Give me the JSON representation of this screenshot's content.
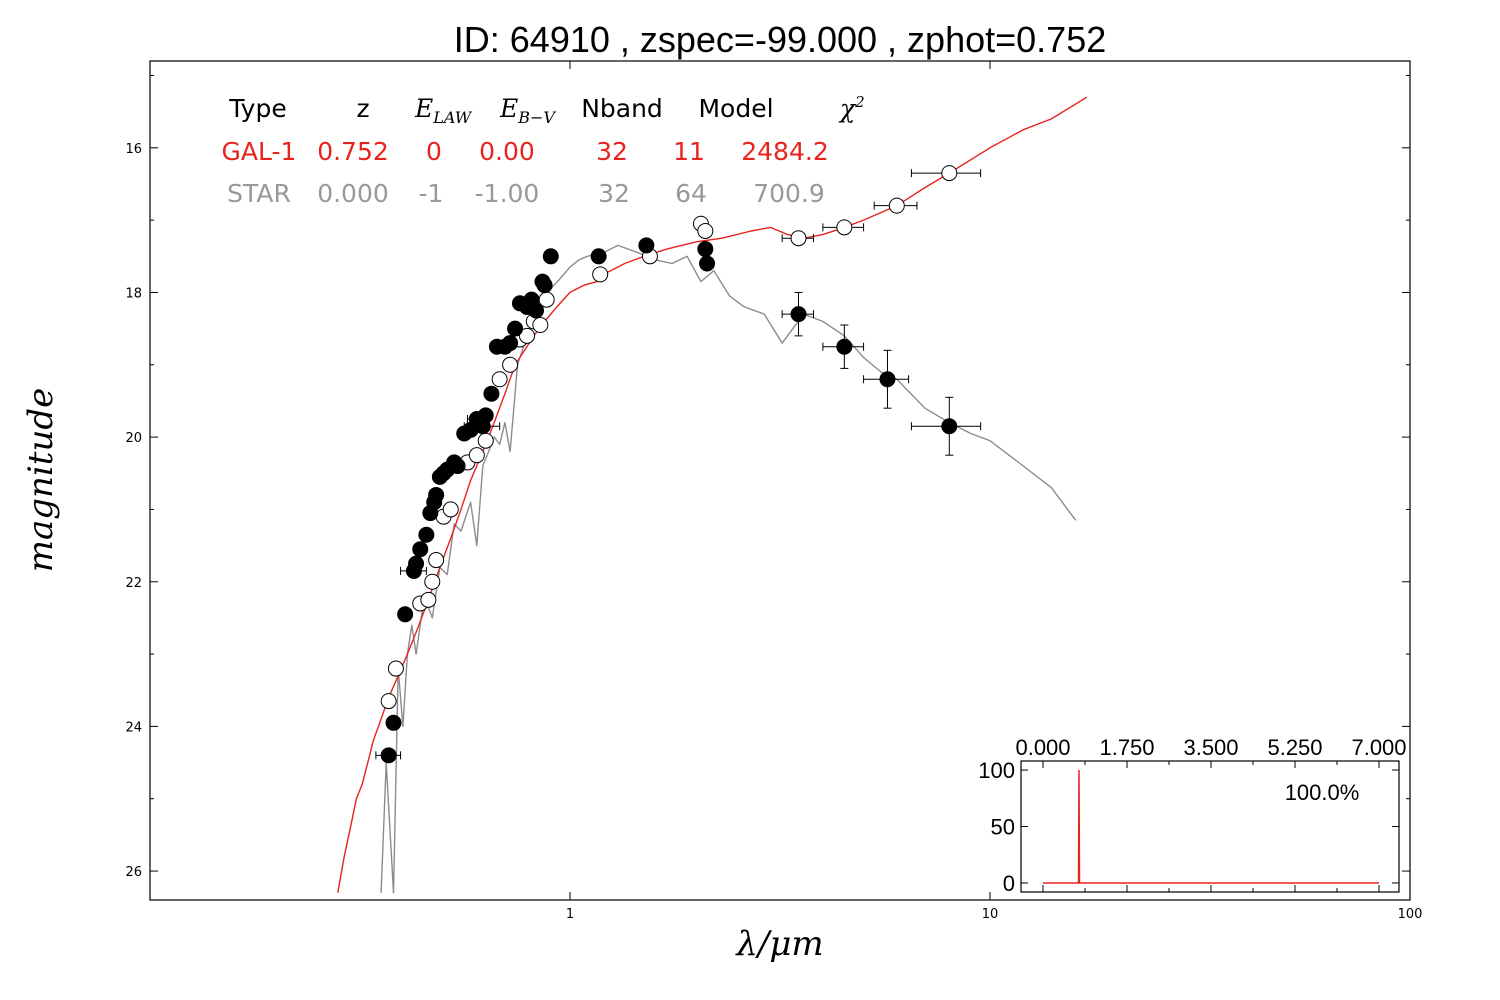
{
  "chart_data": {
    "type": "scatter",
    "title": "ID:  64910 , zspec=-99.000 , zphot=0.752",
    "xlabel": "λ/μm",
    "ylabel": "magnitude",
    "xscale": "log",
    "xlim": [
      0.1,
      100
    ],
    "ylim": [
      26.4,
      14.8
    ],
    "y_inverted": true,
    "xticks": [
      "1",
      "10",
      "100"
    ],
    "yticks": [
      "16",
      "18",
      "20",
      "22",
      "24",
      "26"
    ],
    "grid": false,
    "table": {
      "headers": [
        "Type",
        "z",
        "E_LAW",
        "E_B−V",
        "Nband",
        "Model",
        "χ²"
      ],
      "rows": [
        {
          "type": "GAL-1",
          "z": "0.752",
          "elaw": "0",
          "ebv": "0.00",
          "nband": "32",
          "model": "11",
          "chi2": "2484.2",
          "color": "#e8231d"
        },
        {
          "type": "STAR",
          "z": "0.000",
          "elaw": "-1",
          "ebv": "-1.00",
          "nband": "32",
          "model": "64",
          "chi2": "700.9",
          "color": "#999999"
        }
      ]
    },
    "series": [
      {
        "role": "galaxy model",
        "color": "#e8231d",
        "x": [
          0.28,
          0.29,
          0.3,
          0.31,
          0.32,
          0.33,
          0.34,
          0.35,
          0.37,
          0.39,
          0.41,
          0.43,
          0.45,
          0.47,
          0.49,
          0.52,
          0.55,
          0.58,
          0.62,
          0.66,
          0.7,
          0.74,
          0.78,
          0.82,
          0.87,
          0.93,
          1.0,
          1.08,
          1.16,
          1.2,
          1.25,
          1.35,
          1.5,
          1.7,
          2.0,
          2.3,
          2.7,
          3.0,
          3.3,
          3.6,
          4.0,
          4.5,
          5.0,
          6.0,
          7.0,
          8.0,
          10,
          12,
          14,
          17
        ],
        "y": [
          26.3,
          25.8,
          25.4,
          25.0,
          24.8,
          24.5,
          24.2,
          24.0,
          23.6,
          23.3,
          23.0,
          22.7,
          22.4,
          22.1,
          21.8,
          21.4,
          21.0,
          20.6,
          20.2,
          19.8,
          19.4,
          19.0,
          18.8,
          18.6,
          18.4,
          18.2,
          18.0,
          17.9,
          17.85,
          17.75,
          17.7,
          17.6,
          17.5,
          17.4,
          17.3,
          17.25,
          17.15,
          17.1,
          17.2,
          17.25,
          17.2,
          17.1,
          17.0,
          16.8,
          16.55,
          16.35,
          16.0,
          15.75,
          15.6,
          15.3
        ]
      },
      {
        "role": "star model",
        "color": "#8c8c8c",
        "x": [
          0.355,
          0.365,
          0.38,
          0.39,
          0.4,
          0.41,
          0.42,
          0.43,
          0.45,
          0.47,
          0.49,
          0.51,
          0.53,
          0.55,
          0.58,
          0.6,
          0.62,
          0.64,
          0.66,
          0.68,
          0.7,
          0.72,
          0.75,
          0.78,
          0.82,
          0.86,
          0.9,
          0.95,
          1.0,
          1.05,
          1.1,
          1.2,
          1.3,
          1.45,
          1.6,
          1.75,
          1.9,
          2.05,
          2.2,
          2.4,
          2.6,
          2.9,
          3.2,
          3.6,
          4.0,
          4.5,
          5.0,
          5.5,
          6.0,
          7.0,
          8.0,
          9.0,
          10,
          12,
          14,
          16
        ],
        "y": [
          26.3,
          24.5,
          26.3,
          23.2,
          24.0,
          23.0,
          22.6,
          23.0,
          22.2,
          22.5,
          21.8,
          21.9,
          21.2,
          21.3,
          20.9,
          21.5,
          20.4,
          20.2,
          20.0,
          20.1,
          19.8,
          20.2,
          19.0,
          18.7,
          18.4,
          18.1,
          17.95,
          17.8,
          17.65,
          17.55,
          17.5,
          17.45,
          17.35,
          17.45,
          17.55,
          17.6,
          17.5,
          17.85,
          17.7,
          18.05,
          18.2,
          18.3,
          18.7,
          18.3,
          18.4,
          18.6,
          18.9,
          19.1,
          19.2,
          19.6,
          19.8,
          19.95,
          20.05,
          20.4,
          20.7,
          21.15
        ]
      },
      {
        "role": "observed photometry (filled)",
        "color": "#000000",
        "x": [
          0.37,
          0.38,
          0.405,
          0.425,
          0.43,
          0.44,
          0.455,
          0.465,
          0.475,
          0.48,
          0.49,
          0.5,
          0.51,
          0.53,
          0.54,
          0.56,
          0.58,
          0.6,
          0.62,
          0.63,
          0.65,
          0.67,
          0.7,
          0.72,
          0.74,
          0.76,
          0.79,
          0.81,
          0.83,
          0.86,
          0.87,
          0.9,
          1.17,
          1.52,
          2.1,
          2.12,
          3.5,
          4.5,
          5.7,
          8.0
        ],
        "y": [
          24.4,
          23.95,
          22.45,
          21.85,
          21.75,
          21.55,
          21.35,
          21.05,
          20.9,
          20.8,
          20.55,
          20.5,
          20.45,
          20.35,
          20.4,
          19.95,
          19.9,
          19.75,
          19.85,
          19.7,
          19.4,
          18.75,
          18.75,
          18.7,
          18.5,
          18.15,
          18.2,
          18.1,
          18.25,
          17.85,
          17.9,
          17.5,
          17.5,
          17.35,
          17.4,
          17.6,
          18.3,
          18.75,
          19.2,
          19.85
        ],
        "xerr": [
          0.025,
          0.01,
          0.01,
          0.03,
          0.01,
          0.01,
          0.01,
          0.01,
          0.01,
          0.01,
          0.01,
          0.01,
          0.01,
          0.01,
          0.01,
          0.01,
          0.01,
          0.03,
          0.06,
          0.01,
          0.01,
          0.01,
          0.01,
          0.01,
          0.01,
          0.01,
          0.01,
          0.01,
          0.01,
          0.01,
          0.01,
          0.01,
          0.01,
          0.01,
          0.01,
          0.01,
          0.3,
          0.5,
          0.7,
          1.5
        ],
        "yerr": [
          0,
          0,
          0,
          0,
          0,
          0,
          0,
          0,
          0,
          0,
          0,
          0,
          0,
          0,
          0,
          0,
          0,
          0,
          0,
          0,
          0,
          0,
          0,
          0,
          0,
          0,
          0,
          0,
          0,
          0,
          0,
          0,
          0,
          0,
          0,
          0,
          0.3,
          0.3,
          0.4,
          0.4
        ]
      },
      {
        "role": "model photometry (open)",
        "color": "#ffffff",
        "x": [
          0.37,
          0.385,
          0.44,
          0.46,
          0.47,
          0.48,
          0.5,
          0.52,
          0.57,
          0.6,
          0.63,
          0.68,
          0.72,
          0.76,
          0.79,
          0.82,
          0.85,
          0.88,
          1.18,
          1.55,
          2.05,
          2.1,
          3.5,
          4.5,
          6.0,
          8.0
        ],
        "y": [
          23.65,
          23.2,
          22.3,
          22.25,
          22.0,
          21.7,
          21.1,
          21.0,
          20.35,
          20.25,
          20.05,
          19.2,
          19.0,
          18.65,
          18.6,
          18.4,
          18.45,
          18.1,
          17.75,
          17.5,
          17.05,
          17.15,
          17.25,
          17.1,
          16.8,
          16.35
        ],
        "xerr": [
          0.01,
          0.01,
          0.01,
          0.01,
          0.01,
          0.01,
          0.01,
          0.01,
          0.01,
          0.01,
          0.01,
          0.01,
          0.01,
          0.01,
          0.01,
          0.01,
          0.01,
          0.01,
          0.01,
          0.01,
          0.01,
          0.01,
          0.3,
          0.5,
          0.7,
          1.5
        ]
      }
    ],
    "inset": {
      "type": "line",
      "xticks": [
        "0.000",
        "1.750",
        "3.500",
        "5.250",
        "7.000"
      ],
      "yticks": [
        "0",
        "50",
        "100"
      ],
      "xlim": [
        0,
        7
      ],
      "ylim": [
        -8,
        108
      ],
      "color": "#e8231d",
      "annotation": "100.0%",
      "x": [
        0.0,
        0.7,
        0.74,
        0.75,
        0.76,
        0.8,
        7.0
      ],
      "y": [
        0,
        0,
        0,
        100,
        0,
        0,
        0
      ]
    }
  }
}
